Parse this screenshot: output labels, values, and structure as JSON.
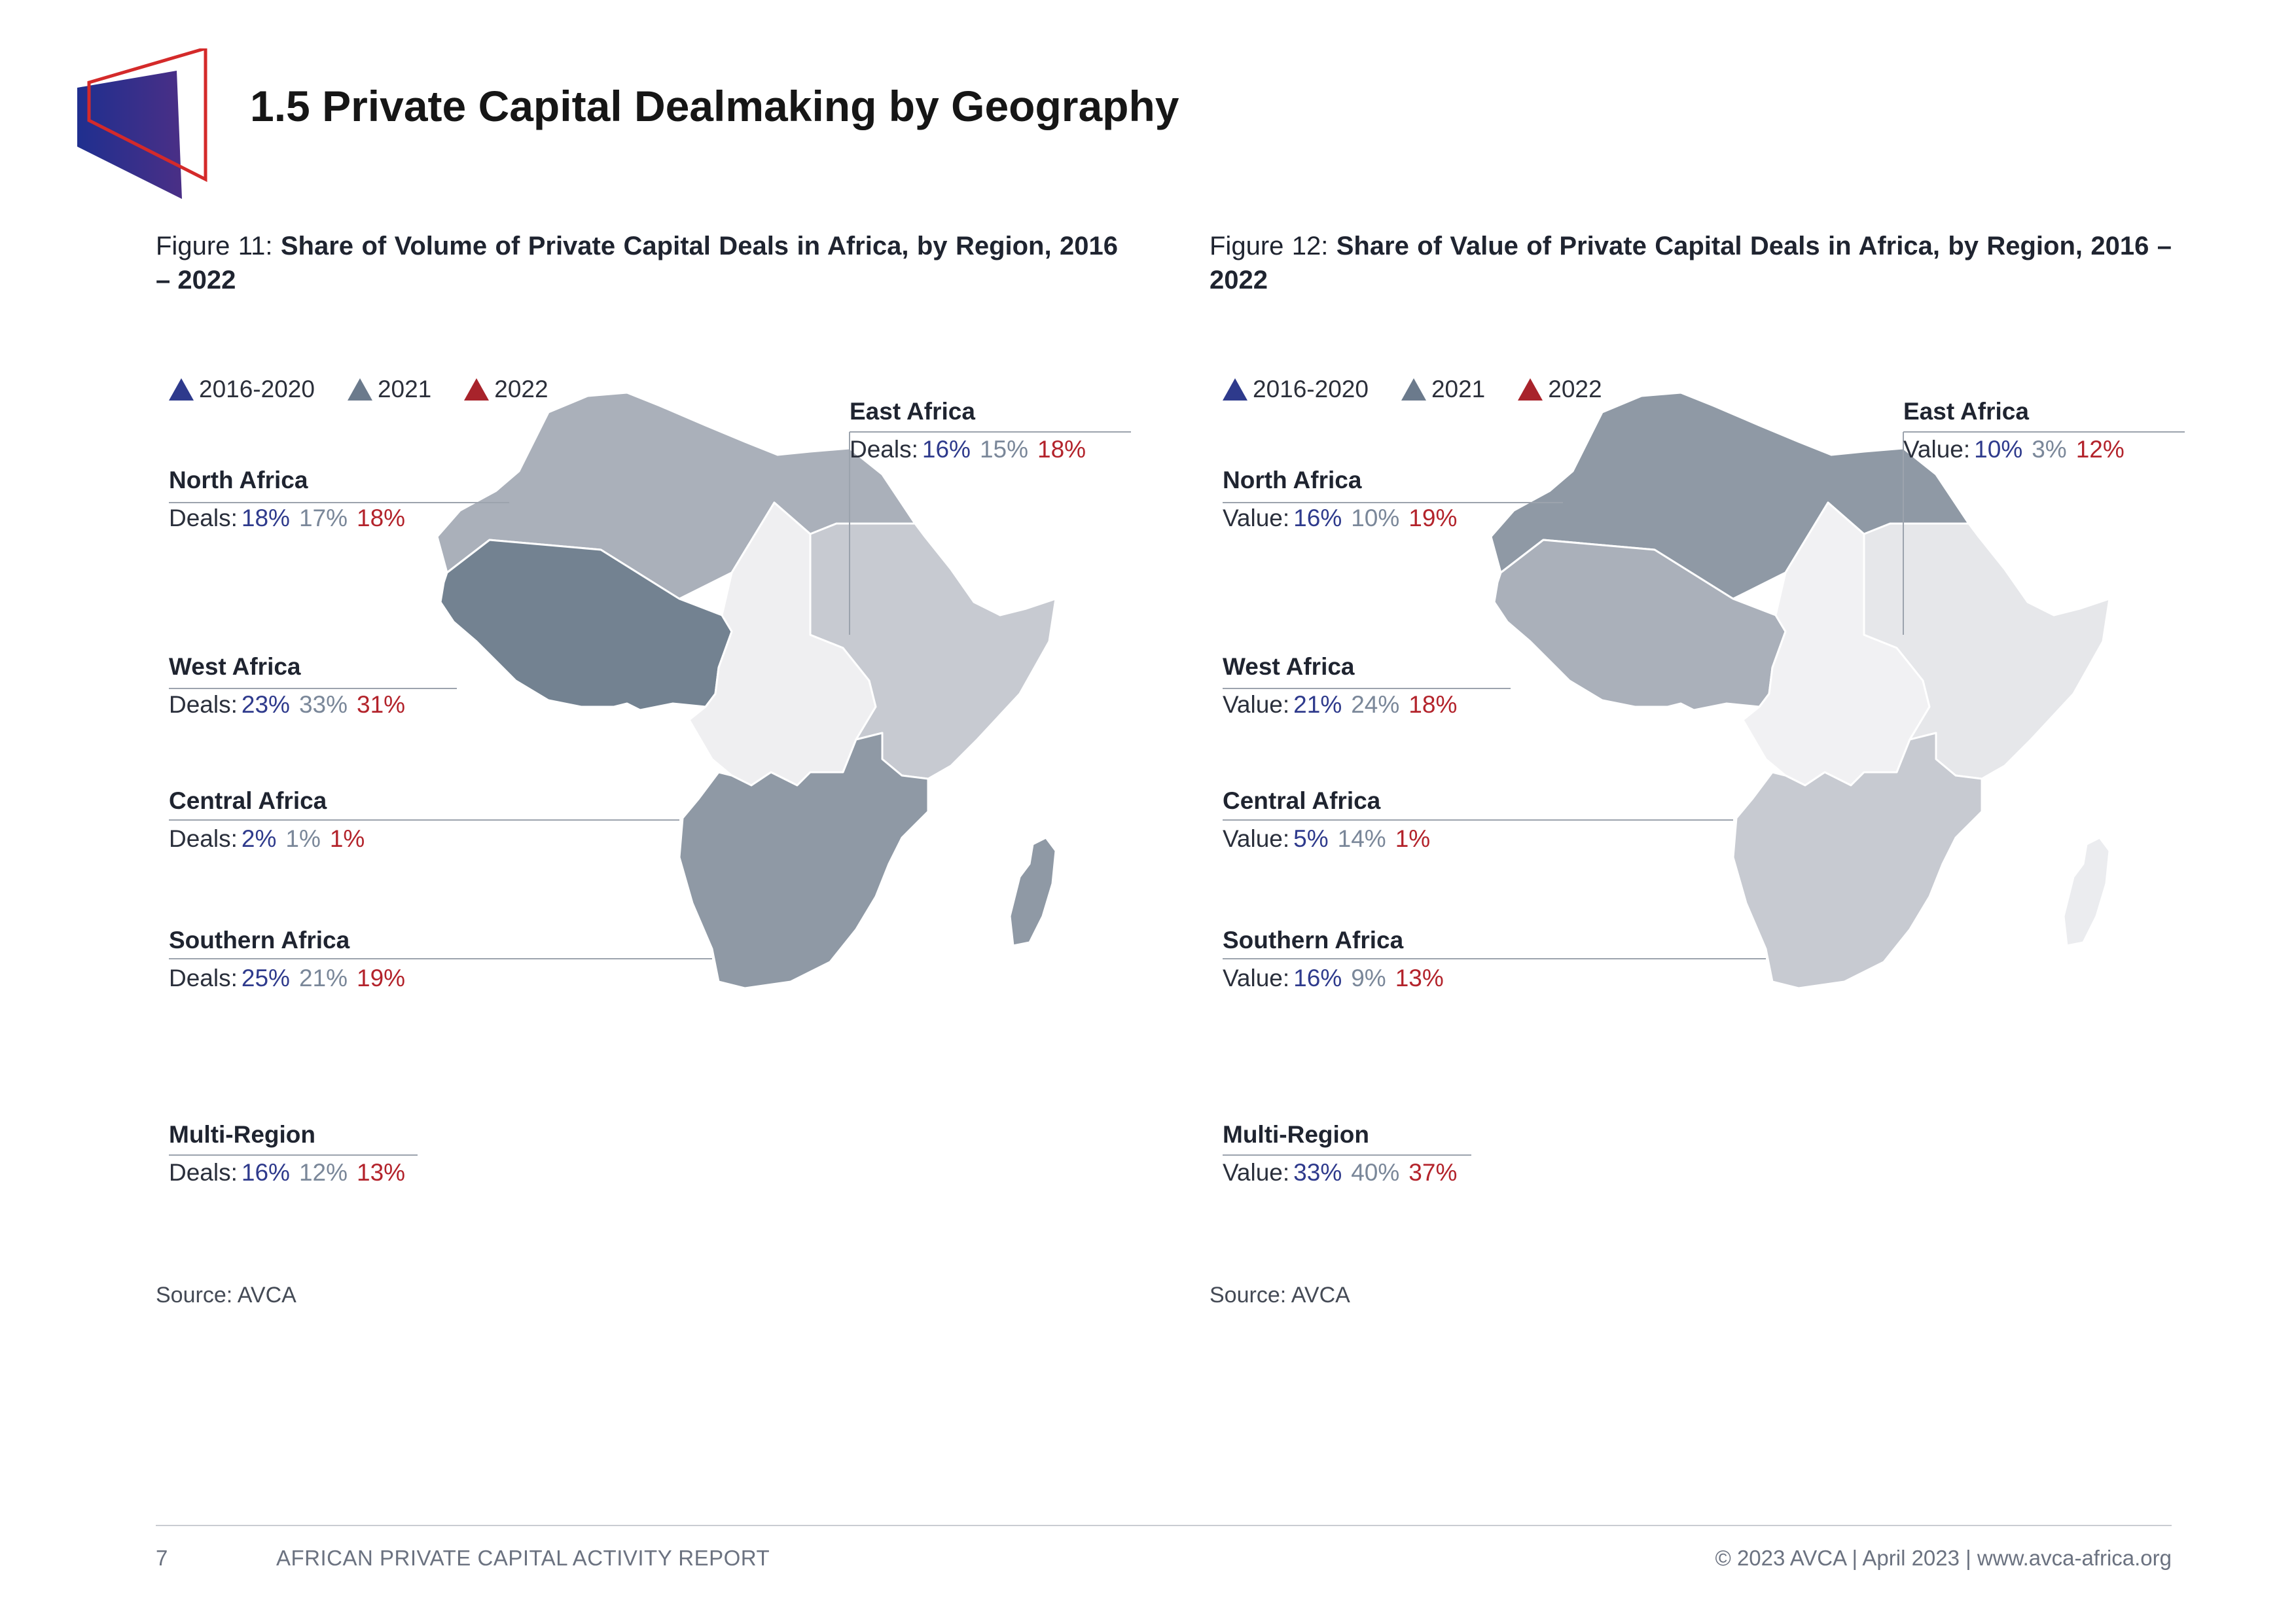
{
  "page": {
    "title": "1.5 Private Capital Dealmaking by Geography"
  },
  "legend": [
    {
      "label": "2016-2020",
      "color": "#2e3a8c"
    },
    {
      "label": "2021",
      "color": "#6b7a8c"
    },
    {
      "label": "2022",
      "color": "#a8232b"
    }
  ],
  "figures": [
    {
      "caption_lead": "Figure 11: ",
      "caption_bold": "Share of Volume of Private Capital Deals in Africa, by Region, 2016 – 2022",
      "metric": "Deals:",
      "source": "Source: AVCA",
      "regions": {
        "north": {
          "name": "North Africa",
          "values": [
            "18%",
            "17%",
            "18%"
          ]
        },
        "west": {
          "name": "West Africa",
          "values": [
            "23%",
            "33%",
            "31%"
          ]
        },
        "central": {
          "name": "Central Africa",
          "values": [
            "2%",
            "1%",
            "1%"
          ]
        },
        "southern": {
          "name": "Southern Africa",
          "values": [
            "25%",
            "21%",
            "19%"
          ]
        },
        "multi": {
          "name": "Multi-Region",
          "values": [
            "16%",
            "12%",
            "13%"
          ]
        },
        "east": {
          "name": "East Africa",
          "values": [
            "16%",
            "15%",
            "18%"
          ]
        }
      },
      "map_colors": {
        "north": "#aab0ba",
        "west": "#738291",
        "central": "#efeff1",
        "southern": "#8f99a5",
        "east": "#c7cad1",
        "madagascar": "#8f99a5"
      }
    },
    {
      "caption_lead": "Figure 12: ",
      "caption_bold": "Share of Value of Private Capital Deals in Africa, by Region, 2016 – 2022",
      "metric": "Value:",
      "source": "Source: AVCA",
      "regions": {
        "north": {
          "name": "North Africa",
          "values": [
            "16%",
            "10%",
            "19%"
          ]
        },
        "west": {
          "name": "West Africa",
          "values": [
            "21%",
            "24%",
            "18%"
          ]
        },
        "central": {
          "name": "Central Africa",
          "values": [
            "5%",
            "14%",
            "1%"
          ]
        },
        "southern": {
          "name": "Southern Africa",
          "values": [
            "16%",
            "9%",
            "13%"
          ]
        },
        "multi": {
          "name": "Multi-Region",
          "values": [
            "33%",
            "40%",
            "37%"
          ]
        },
        "east": {
          "name": "East Africa",
          "values": [
            "10%",
            "3%",
            "12%"
          ]
        }
      },
      "map_colors": {
        "north": "#8f99a5",
        "west": "#aab0ba",
        "central": "#f1f1f3",
        "southern": "#c7cad1",
        "east": "#e6e7ea",
        "madagascar": "#ebecef"
      }
    }
  ],
  "footer": {
    "page_number": "7",
    "report": "AFRICAN PRIVATE CAPITAL ACTIVITY REPORT",
    "right": "© 2023 AVCA | April 2023 | www.avca-africa.org"
  }
}
